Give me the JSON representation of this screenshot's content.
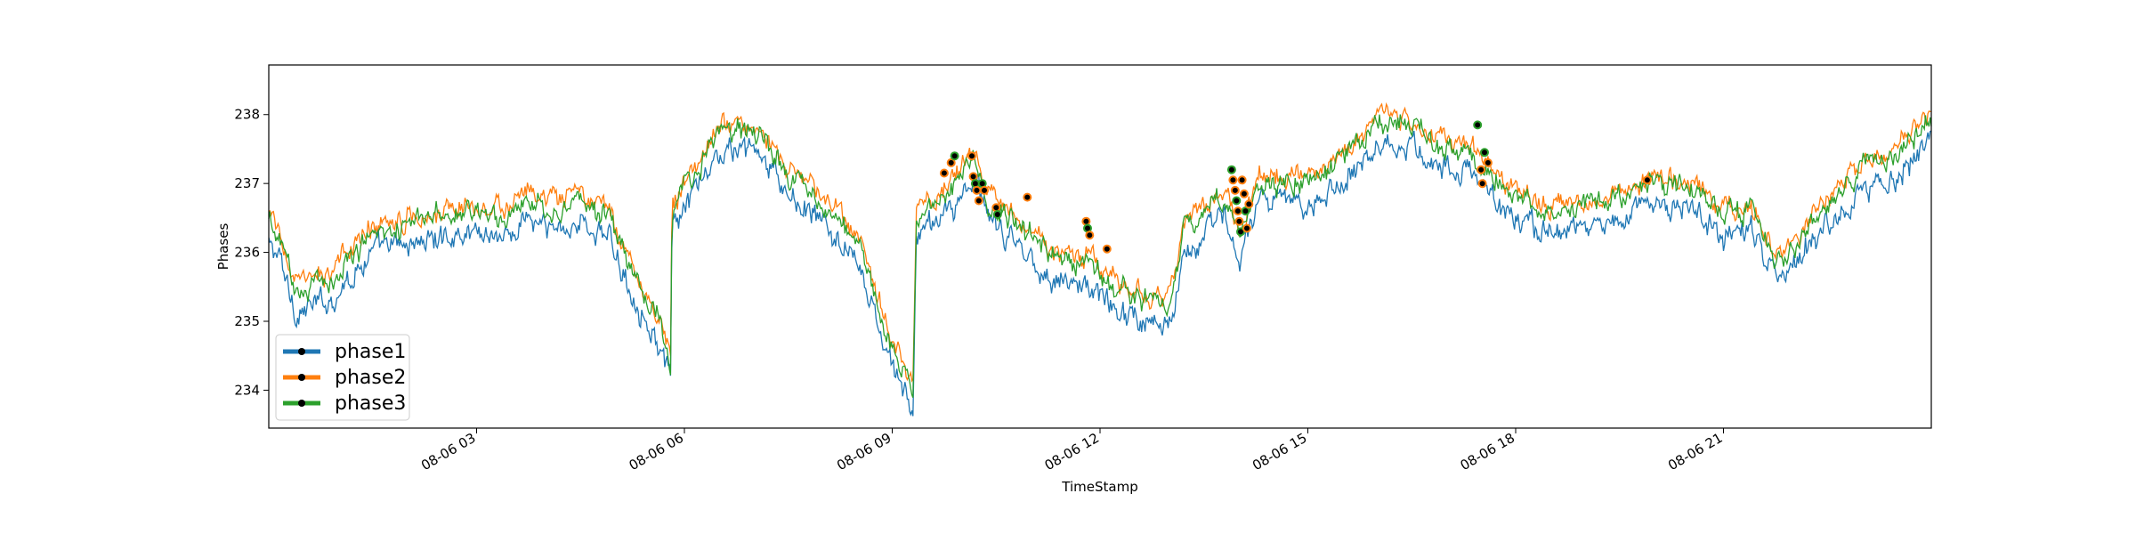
{
  "chart_data": {
    "type": "line",
    "title": "",
    "xlabel": "TimeStamp",
    "ylabel": "Phases",
    "xlim_hours": [
      0,
      24
    ],
    "ylim": [
      233.45,
      238.72
    ],
    "yticks": [
      234,
      235,
      236,
      237,
      238
    ],
    "xticks": [
      {
        "hour": 3,
        "label": "08-06 03"
      },
      {
        "hour": 6,
        "label": "08-06 06"
      },
      {
        "hour": 9,
        "label": "08-06 09"
      },
      {
        "hour": 12,
        "label": "08-06 12"
      },
      {
        "hour": 15,
        "label": "08-06 15"
      },
      {
        "hour": 18,
        "label": "08-06 18"
      },
      {
        "hour": 21,
        "label": "08-06 21"
      }
    ],
    "legend_position": "bottom-left",
    "series": [
      {
        "name": "phase1",
        "color": "#1f77b4",
        "offset": -0.28,
        "noise": 0.13,
        "points": [
          [
            0,
            236.4
          ],
          [
            0.15,
            236.2
          ],
          [
            0.4,
            235.4
          ],
          [
            0.9,
            235.6
          ],
          [
            1.5,
            236.3
          ],
          [
            2.5,
            236.5
          ],
          [
            3.0,
            236.6
          ],
          [
            3.5,
            236.5
          ],
          [
            3.7,
            236.8
          ],
          [
            4.0,
            236.6
          ],
          [
            4.5,
            236.7
          ],
          [
            4.9,
            236.5
          ],
          [
            5.2,
            235.8
          ],
          [
            5.6,
            235.0
          ],
          [
            5.8,
            234.4
          ],
          [
            5.82,
            236.6
          ],
          [
            6.5,
            237.7
          ],
          [
            7.0,
            237.8
          ],
          [
            7.5,
            237.1
          ],
          [
            8.0,
            236.7
          ],
          [
            8.5,
            236.1
          ],
          [
            9.0,
            234.6
          ],
          [
            9.3,
            234.0
          ],
          [
            9.35,
            236.5
          ],
          [
            9.8,
            236.9
          ],
          [
            10.2,
            237.3
          ],
          [
            10.4,
            236.7
          ],
          [
            10.8,
            236.4
          ],
          [
            11.3,
            235.9
          ],
          [
            11.8,
            235.8
          ],
          [
            12.2,
            235.5
          ],
          [
            12.6,
            235.3
          ],
          [
            13.0,
            235.2
          ],
          [
            13.2,
            236.3
          ],
          [
            13.8,
            236.8
          ],
          [
            14.0,
            236.2
          ],
          [
            14.3,
            237.0
          ],
          [
            15.0,
            237.0
          ],
          [
            15.5,
            237.3
          ],
          [
            16.0,
            237.9
          ],
          [
            16.5,
            237.8
          ],
          [
            17.0,
            237.5
          ],
          [
            17.4,
            237.4
          ],
          [
            17.7,
            237.0
          ],
          [
            18.3,
            236.6
          ],
          [
            18.8,
            236.6
          ],
          [
            19.3,
            236.7
          ],
          [
            20.0,
            237.0
          ],
          [
            20.6,
            236.9
          ],
          [
            21.0,
            236.5
          ],
          [
            21.4,
            236.6
          ],
          [
            21.8,
            235.8
          ],
          [
            22.4,
            236.6
          ],
          [
            23.0,
            237.2
          ],
          [
            23.5,
            237.4
          ],
          [
            24.0,
            237.9
          ]
        ]
      },
      {
        "name": "phase2",
        "color": "#ff7f0e",
        "offset": 0.12,
        "noise": 0.11,
        "points": [
          [
            0,
            236.4
          ],
          [
            0.15,
            236.2
          ],
          [
            0.4,
            235.4
          ],
          [
            0.9,
            235.6
          ],
          [
            1.5,
            236.3
          ],
          [
            2.5,
            236.5
          ],
          [
            3.0,
            236.6
          ],
          [
            3.5,
            236.5
          ],
          [
            3.7,
            236.8
          ],
          [
            4.0,
            236.6
          ],
          [
            4.5,
            236.7
          ],
          [
            4.9,
            236.5
          ],
          [
            5.2,
            235.8
          ],
          [
            5.6,
            235.0
          ],
          [
            5.8,
            234.4
          ],
          [
            5.82,
            236.6
          ],
          [
            6.5,
            237.7
          ],
          [
            7.0,
            237.8
          ],
          [
            7.5,
            237.1
          ],
          [
            8.0,
            236.7
          ],
          [
            8.5,
            236.1
          ],
          [
            9.0,
            234.6
          ],
          [
            9.3,
            234.0
          ],
          [
            9.35,
            236.5
          ],
          [
            9.8,
            236.9
          ],
          [
            10.2,
            237.3
          ],
          [
            10.4,
            236.7
          ],
          [
            10.8,
            236.4
          ],
          [
            11.3,
            235.9
          ],
          [
            11.8,
            235.8
          ],
          [
            12.2,
            235.5
          ],
          [
            12.6,
            235.3
          ],
          [
            13.0,
            235.2
          ],
          [
            13.2,
            236.3
          ],
          [
            13.8,
            236.8
          ],
          [
            14.0,
            236.2
          ],
          [
            14.3,
            237.0
          ],
          [
            15.0,
            237.0
          ],
          [
            15.5,
            237.3
          ],
          [
            16.0,
            237.9
          ],
          [
            16.5,
            237.8
          ],
          [
            17.0,
            237.5
          ],
          [
            17.4,
            237.4
          ],
          [
            17.7,
            237.0
          ],
          [
            18.3,
            236.6
          ],
          [
            18.8,
            236.6
          ],
          [
            19.3,
            236.7
          ],
          [
            20.0,
            237.0
          ],
          [
            20.6,
            236.9
          ],
          [
            21.0,
            236.5
          ],
          [
            21.4,
            236.6
          ],
          [
            21.8,
            235.8
          ],
          [
            22.4,
            236.6
          ],
          [
            23.0,
            237.2
          ],
          [
            23.5,
            237.4
          ],
          [
            24.0,
            237.9
          ]
        ]
      },
      {
        "name": "phase3",
        "color": "#2ca02c",
        "offset": 0.02,
        "noise": 0.12,
        "points": [
          [
            0,
            236.4
          ],
          [
            0.15,
            236.2
          ],
          [
            0.4,
            235.4
          ],
          [
            0.9,
            235.6
          ],
          [
            1.5,
            236.3
          ],
          [
            2.5,
            236.5
          ],
          [
            3.0,
            236.6
          ],
          [
            3.5,
            236.5
          ],
          [
            3.7,
            236.8
          ],
          [
            4.0,
            236.6
          ],
          [
            4.5,
            236.7
          ],
          [
            4.9,
            236.5
          ],
          [
            5.2,
            235.8
          ],
          [
            5.6,
            235.0
          ],
          [
            5.8,
            234.4
          ],
          [
            5.82,
            236.6
          ],
          [
            6.5,
            237.7
          ],
          [
            7.0,
            237.8
          ],
          [
            7.5,
            237.1
          ],
          [
            8.0,
            236.7
          ],
          [
            8.5,
            236.1
          ],
          [
            9.0,
            234.6
          ],
          [
            9.3,
            234.0
          ],
          [
            9.35,
            236.5
          ],
          [
            9.8,
            236.9
          ],
          [
            10.2,
            237.3
          ],
          [
            10.4,
            236.7
          ],
          [
            10.8,
            236.4
          ],
          [
            11.3,
            235.9
          ],
          [
            11.8,
            235.8
          ],
          [
            12.2,
            235.5
          ],
          [
            12.6,
            235.3
          ],
          [
            13.0,
            235.2
          ],
          [
            13.2,
            236.3
          ],
          [
            13.8,
            236.8
          ],
          [
            14.0,
            236.2
          ],
          [
            14.3,
            237.0
          ],
          [
            15.0,
            237.0
          ],
          [
            15.5,
            237.3
          ],
          [
            16.0,
            237.9
          ],
          [
            16.5,
            237.8
          ],
          [
            17.0,
            237.5
          ],
          [
            17.4,
            237.4
          ],
          [
            17.7,
            237.0
          ],
          [
            18.3,
            236.6
          ],
          [
            18.8,
            236.6
          ],
          [
            19.3,
            236.7
          ],
          [
            20.0,
            237.0
          ],
          [
            20.6,
            236.9
          ],
          [
            21.0,
            236.5
          ],
          [
            21.4,
            236.6
          ],
          [
            21.8,
            235.8
          ],
          [
            22.4,
            236.6
          ],
          [
            23.0,
            237.2
          ],
          [
            23.5,
            237.4
          ],
          [
            24.0,
            237.9
          ]
        ]
      }
    ],
    "markers": [
      {
        "hour": 9.75,
        "value": 237.15
      },
      {
        "hour": 9.85,
        "value": 237.3
      },
      {
        "hour": 9.9,
        "value": 237.4
      },
      {
        "hour": 10.15,
        "value": 237.4
      },
      {
        "hour": 10.17,
        "value": 237.1
      },
      {
        "hour": 10.2,
        "value": 237.0
      },
      {
        "hour": 10.22,
        "value": 236.9
      },
      {
        "hour": 10.25,
        "value": 236.75
      },
      {
        "hour": 10.3,
        "value": 237.0
      },
      {
        "hour": 10.33,
        "value": 236.9
      },
      {
        "hour": 10.5,
        "value": 236.65
      },
      {
        "hour": 10.52,
        "value": 236.55
      },
      {
        "hour": 10.95,
        "value": 236.8
      },
      {
        "hour": 11.8,
        "value": 236.45
      },
      {
        "hour": 11.82,
        "value": 236.35
      },
      {
        "hour": 11.85,
        "value": 236.25
      },
      {
        "hour": 12.1,
        "value": 236.05
      },
      {
        "hour": 13.9,
        "value": 237.2
      },
      {
        "hour": 13.92,
        "value": 237.05
      },
      {
        "hour": 13.95,
        "value": 236.9
      },
      {
        "hour": 13.97,
        "value": 236.75
      },
      {
        "hour": 13.99,
        "value": 236.6
      },
      {
        "hour": 14.01,
        "value": 236.45
      },
      {
        "hour": 14.03,
        "value": 236.3
      },
      {
        "hour": 14.05,
        "value": 237.05
      },
      {
        "hour": 14.08,
        "value": 236.85
      },
      {
        "hour": 14.1,
        "value": 236.6
      },
      {
        "hour": 14.12,
        "value": 236.35
      },
      {
        "hour": 14.15,
        "value": 236.7
      },
      {
        "hour": 17.45,
        "value": 237.85
      },
      {
        "hour": 17.5,
        "value": 237.2
      },
      {
        "hour": 17.52,
        "value": 237.0
      },
      {
        "hour": 17.55,
        "value": 237.45
      },
      {
        "hour": 17.6,
        "value": 237.3
      },
      {
        "hour": 19.9,
        "value": 237.05
      }
    ]
  }
}
